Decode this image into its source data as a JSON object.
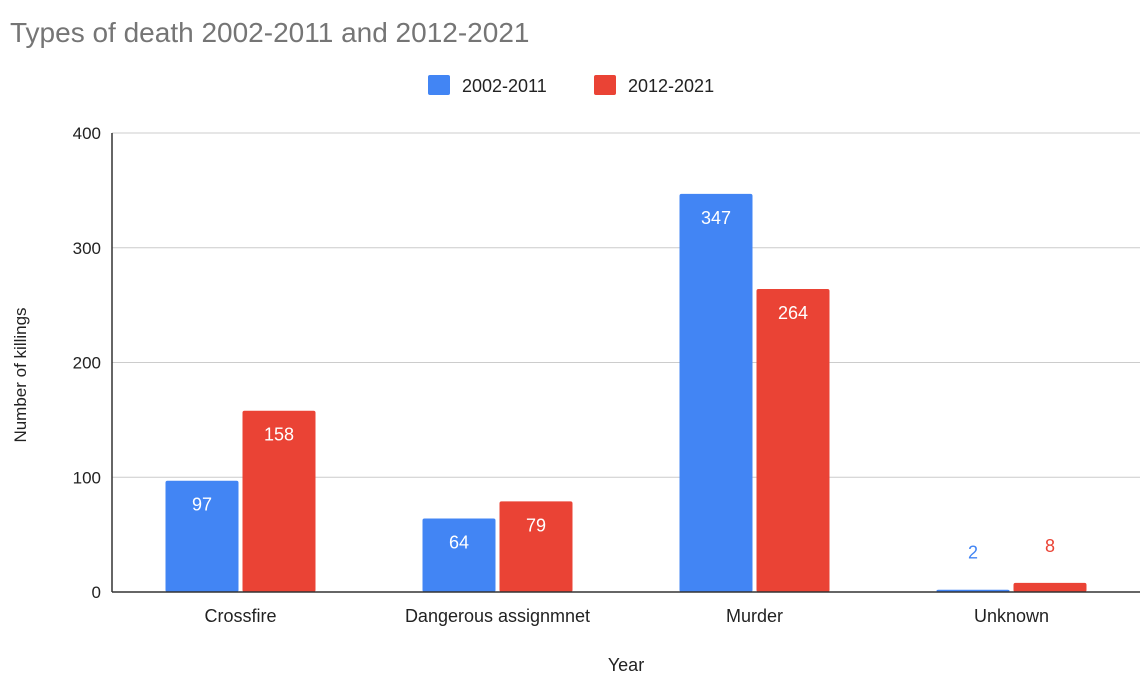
{
  "chart_data": {
    "type": "bar",
    "title": "Types of death 2002-2011 and 2012-2021",
    "xlabel": "Year",
    "ylabel": "Number of killings",
    "categories": [
      "Crossfire",
      "Dangerous assignmnet",
      "Murder",
      "Unknown"
    ],
    "series": [
      {
        "name": "2002-2011",
        "color": "#4285f4",
        "values": [
          97,
          64,
          347,
          2
        ]
      },
      {
        "name": "2012-2021",
        "color": "#ea4335",
        "values": [
          158,
          79,
          264,
          8
        ]
      }
    ],
    "ylim": [
      0,
      400
    ],
    "yticks": [
      0,
      100,
      200,
      300,
      400
    ],
    "grid": true,
    "legend_position": "top-center"
  }
}
